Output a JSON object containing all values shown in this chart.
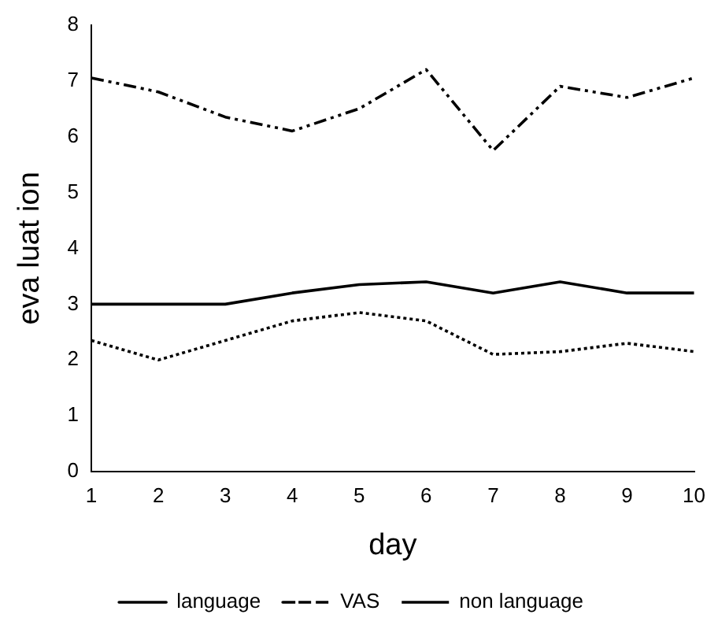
{
  "chart_data": {
    "type": "line",
    "xlabel": "day",
    "ylabel": "eva luat ion",
    "categories": [
      "1",
      "2",
      "3",
      "4",
      "5",
      "6",
      "7",
      "8",
      "9",
      "10"
    ],
    "series": [
      {
        "name": "language",
        "color": "#000000",
        "line_style": "solid",
        "values": [
          3.0,
          3.0,
          3.0,
          3.2,
          3.35,
          3.4,
          3.2,
          3.4,
          3.2,
          3.2
        ]
      },
      {
        "name": "VAS",
        "color": "#000000",
        "line_style": "dashed",
        "values": [
          7.05,
          6.8,
          6.35,
          6.1,
          6.5,
          7.2,
          5.75,
          6.9,
          6.7,
          7.05
        ]
      },
      {
        "name": "non language",
        "color": "#000000",
        "line_style": "dotted",
        "values": [
          2.35,
          2.0,
          2.35,
          2.7,
          2.85,
          2.7,
          2.1,
          2.15,
          2.3,
          2.15
        ]
      }
    ],
    "ylim": [
      0,
      8
    ],
    "yticks": [
      0,
      1,
      2,
      3,
      4,
      5,
      6,
      7,
      8
    ],
    "grid": false,
    "legend": "bottom",
    "marker": "none"
  }
}
